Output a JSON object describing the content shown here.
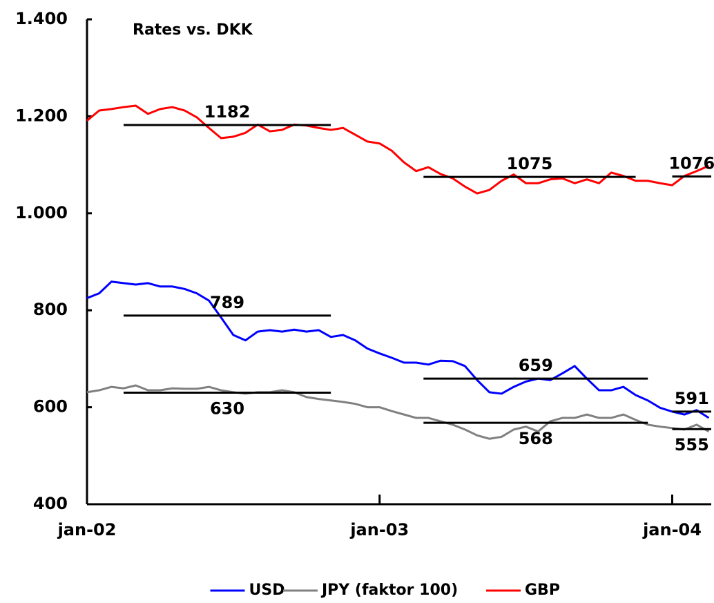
{
  "chart_data": {
    "type": "line",
    "title": "Rates vs. DKK",
    "x": [
      0,
      0.5,
      1,
      1.5,
      2,
      2.5,
      3,
      3.5,
      4,
      4.5,
      5,
      5.5,
      6,
      6.5,
      7,
      7.5,
      8,
      8.5,
      9,
      9.5,
      10,
      10.5,
      11,
      11.5,
      12,
      12.5,
      13,
      13.5,
      14,
      14.5,
      15,
      15.5,
      16,
      16.5,
      17,
      17.5,
      18,
      18.5,
      19,
      19.5,
      20,
      20.5,
      21,
      21.5,
      22,
      22.5,
      23,
      23.5,
      24,
      24.5,
      25,
      25.5
    ],
    "series": [
      {
        "name": "USD",
        "color": "#0000ff",
        "values": [
          825,
          835,
          859,
          856,
          853,
          856,
          849,
          849,
          844,
          835,
          820,
          785,
          749,
          738,
          756,
          759,
          756,
          760,
          756,
          759,
          745,
          749,
          738,
          721,
          711,
          702,
          692,
          692,
          688,
          696,
          695,
          685,
          656,
          631,
          628,
          642,
          653,
          659,
          656,
          670,
          685,
          659,
          635,
          635,
          642,
          625,
          614,
          599,
          591,
          585,
          594,
          578
        ]
      },
      {
        "name": "JPY (faktor 100)",
        "color": "#808080",
        "values": [
          631,
          635,
          642,
          639,
          645,
          635,
          635,
          639,
          638,
          638,
          642,
          635,
          631,
          628,
          631,
          631,
          635,
          631,
          621,
          617,
          614,
          611,
          607,
          600,
          600,
          592,
          585,
          578,
          578,
          571,
          564,
          554,
          542,
          535,
          539,
          554,
          560,
          550,
          571,
          578,
          578,
          585,
          578,
          578,
          585,
          574,
          564,
          560,
          557,
          554,
          564,
          550
        ]
      },
      {
        "name": "GBP",
        "color": "#ff0000",
        "values": [
          1191,
          1212,
          1215,
          1219,
          1222,
          1205,
          1215,
          1219,
          1212,
          1198,
          1176,
          1155,
          1158,
          1166,
          1183,
          1169,
          1172,
          1183,
          1181,
          1176,
          1172,
          1176,
          1162,
          1148,
          1144,
          1129,
          1105,
          1087,
          1095,
          1081,
          1072,
          1055,
          1041,
          1048,
          1067,
          1080,
          1062,
          1062,
          1070,
          1072,
          1062,
          1070,
          1062,
          1084,
          1077,
          1067,
          1067,
          1062,
          1058,
          1077,
          1087,
          1098
        ]
      }
    ],
    "annotations": [
      {
        "value": 1182,
        "x": [
          1.5,
          10
        ],
        "position": "above"
      },
      {
        "value": 789,
        "x": [
          1.5,
          10
        ],
        "position": "above"
      },
      {
        "value": 630,
        "x": [
          1.5,
          10
        ],
        "position": "below"
      },
      {
        "value": 1075,
        "x": [
          13.8,
          22.5
        ],
        "position": "above"
      },
      {
        "value": 659,
        "x": [
          13.8,
          23
        ],
        "position": "above"
      },
      {
        "value": 568,
        "x": [
          13.8,
          23
        ],
        "position": "below"
      },
      {
        "value": 1076,
        "x": [
          24,
          25.6
        ],
        "position": "above"
      },
      {
        "value": 591,
        "x": [
          24,
          25.6
        ],
        "position": "above"
      },
      {
        "value": 555,
        "x": [
          24,
          25.6
        ],
        "position": "below"
      }
    ],
    "xlim": [
      0,
      25.6
    ],
    "xticks": [
      {
        "value": 0,
        "label": "jan-02"
      },
      {
        "value": 12,
        "label": "jan-03"
      },
      {
        "value": 24,
        "label": "jan-04"
      }
    ],
    "ylim": [
      400,
      1400
    ],
    "yticks": [
      400,
      600,
      800,
      {
        "value": 1000,
        "label": "1.000"
      },
      {
        "value": 1200,
        "label": "1.200"
      },
      {
        "value": 1400,
        "label": "1.400"
      }
    ],
    "grid": false,
    "legend": "bottom"
  }
}
